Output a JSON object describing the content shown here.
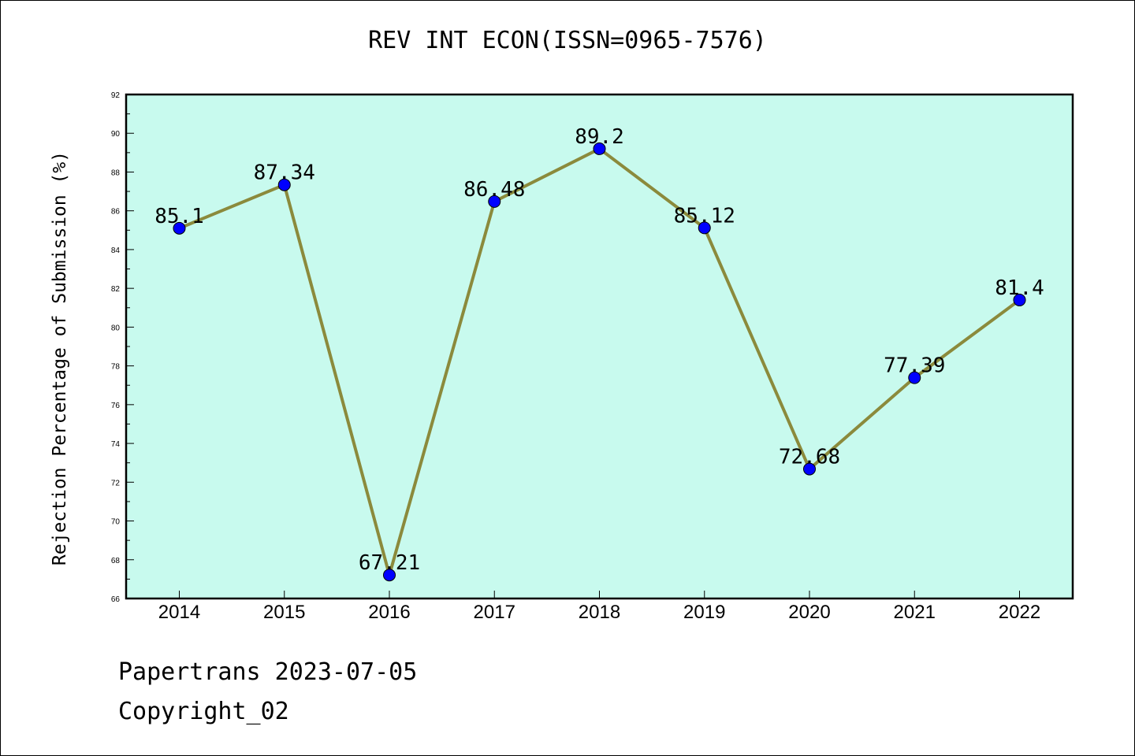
{
  "chart_data": {
    "type": "line",
    "title": "REV INT ECON(ISSN=0965-7576)",
    "xlabel": "",
    "ylabel": "Rejection Percentage of Submission (%)",
    "x": [
      "2014",
      "2015",
      "2016",
      "2017",
      "2018",
      "2019",
      "2020",
      "2021",
      "2022"
    ],
    "series": [
      {
        "values": [
          85.1,
          87.34,
          67.21,
          86.48,
          89.2,
          85.12,
          72.68,
          77.39,
          81.4
        ],
        "labels": [
          "85.1",
          "87.34",
          "67.21",
          "86.48",
          "89.2",
          "85.12",
          "72.68",
          "77.39",
          "81.4"
        ]
      }
    ],
    "ylim": [
      66,
      92
    ],
    "yticks": [
      "66",
      "68",
      "70",
      "72",
      "74",
      "76",
      "78",
      "80",
      "82",
      "84",
      "86",
      "88",
      "90",
      "92"
    ],
    "grid": false,
    "colors": {
      "plot_background": "#c8faee",
      "line": "#8b8a3c",
      "marker": "#0000ff"
    }
  },
  "footer": {
    "source": "Papertrans 2023-07-05",
    "copyright": "Copyright_02"
  }
}
